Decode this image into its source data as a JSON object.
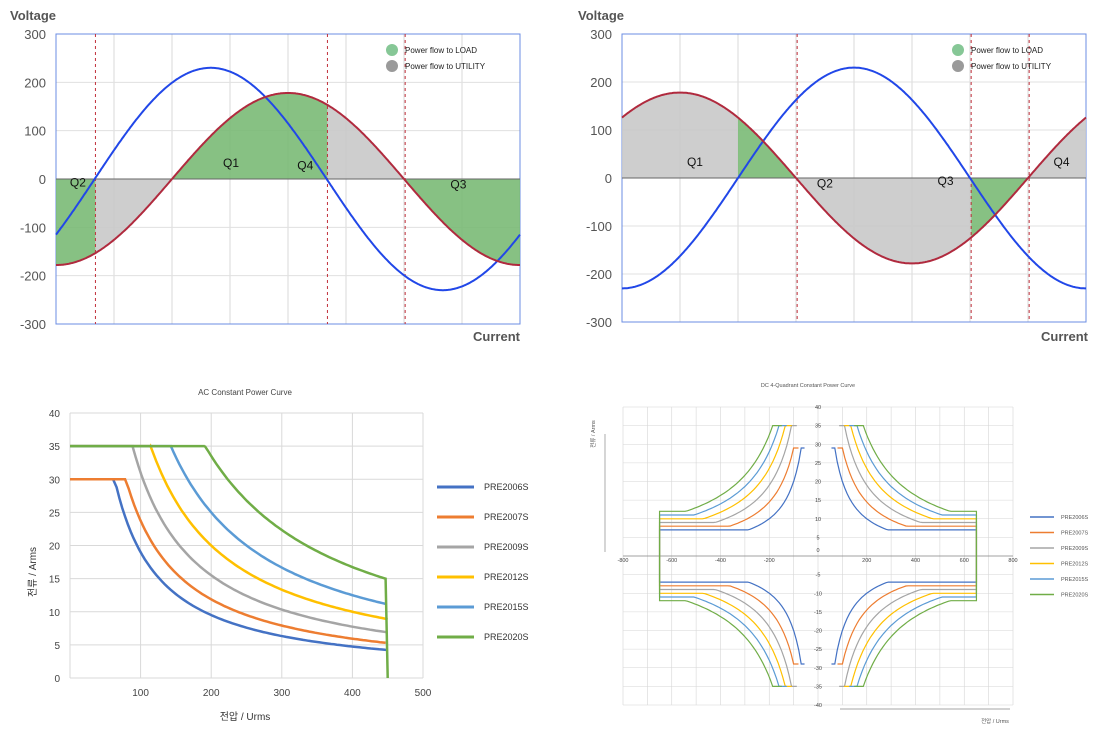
{
  "quadrant_charts": [
    {
      "y_title": "Voltage",
      "x_title": "Current",
      "ylim": [
        -300,
        300
      ],
      "y_ticks": [
        "300",
        "200",
        "100",
        "0",
        "-100",
        "-200",
        "-300"
      ],
      "legend": [
        {
          "label": "Power flow to LOAD",
          "color": "#86c796"
        },
        {
          "label": "Power flow to UTILITY",
          "color": "#9a9a9a"
        }
      ],
      "quadrant_labels": [
        "Q2",
        "Q1",
        "Q4",
        "Q3"
      ],
      "colors": {
        "voltage": "#2147e8",
        "current": "#b02a3e",
        "load_fill": "#7aba76",
        "utility_fill": "#c9c9c9",
        "divider": "#c0303a"
      }
    },
    {
      "y_title": "Voltage",
      "x_title": "Current",
      "ylim": [
        -300,
        300
      ],
      "y_ticks": [
        "300",
        "200",
        "100",
        "0",
        "-100",
        "-200",
        "-300"
      ],
      "legend": [
        {
          "label": "Power flow to LOAD",
          "color": "#86c796"
        },
        {
          "label": "Power flow to UTILITY",
          "color": "#9a9a9a"
        }
      ],
      "quadrant_labels": [
        "Q1",
        "Q2",
        "Q3",
        "Q4"
      ],
      "colors": {
        "voltage": "#2147e8",
        "current": "#b02a3e",
        "load_fill": "#7aba76",
        "utility_fill": "#c9c9c9",
        "divider": "#c0303a"
      }
    }
  ],
  "ac_chart": {
    "title": "AC Constant Power Curve",
    "xlabel": "전압 / Urms",
    "ylabel": "전류 / Arms",
    "x_ticks": [
      "100",
      "200",
      "300",
      "400",
      "500"
    ],
    "y_ticks": [
      "0",
      "5",
      "10",
      "15",
      "20",
      "25",
      "30",
      "35",
      "40"
    ],
    "legend": [
      "PRE2006S",
      "PRE2007S",
      "PRE2009S",
      "PRE2012S",
      "PRE2015S",
      "PRE2020S"
    ]
  },
  "dc_chart": {
    "title": "DC 4-Quadrant Constant Power Curve",
    "xlabel": "전압 / Urms",
    "ylabel": "전류 / Arms",
    "x_ticks": [
      "-800",
      "-600",
      "-400",
      "-200",
      "0",
      "200",
      "400",
      "600",
      "800"
    ],
    "y_ticks": [
      "40",
      "35",
      "30",
      "25",
      "20",
      "15",
      "10",
      "5",
      "0",
      "-5",
      "-10",
      "-15",
      "-20",
      "-25",
      "-30",
      "-35",
      "-40"
    ],
    "legend": [
      "PRE2006S",
      "PRE2007S",
      "PRE2009S",
      "PRE2012S",
      "PRE2015S",
      "PRE2020S"
    ]
  },
  "chart_data": [
    {
      "type": "line",
      "title": "",
      "xlabel": "Current",
      "ylabel": "Voltage",
      "ylim": [
        -300,
        300
      ],
      "series": [
        {
          "name": "",
          "description_values": "voltage sine",
          "amplitude": 230,
          "phase_deg": -30
        },
        {
          "name": "",
          "description_values": "current sine",
          "amplitude": 178,
          "phase_deg": -90
        }
      ],
      "legend": [
        "Power flow to LOAD",
        "Power flow to UTILITY"
      ]
    },
    {
      "type": "line",
      "title": "",
      "xlabel": "Current",
      "ylabel": "Voltage",
      "ylim": [
        -300,
        300
      ],
      "series": [
        {
          "name": "",
          "amplitude": 230,
          "phase_deg": -90
        },
        {
          "name": "",
          "amplitude": 178,
          "phase_deg": 45
        }
      ],
      "legend": [
        "Power flow to LOAD",
        "Power flow to UTILITY"
      ]
    },
    {
      "type": "line",
      "title": "AC Constant Power Curve",
      "xlabel": "전압 / Urms",
      "ylabel": "전류 / Arms",
      "xlim": [
        0,
        500
      ],
      "ylim": [
        0,
        40
      ],
      "series": [
        {
          "name": "PRE2006S",
          "power": 2000,
          "imax": 30,
          "vmin": 66,
          "vmax": 450
        },
        {
          "name": "PRE2007S",
          "power": 2500,
          "imax": 30,
          "vmin": 83,
          "vmax": 450
        },
        {
          "name": "PRE2009S",
          "power": 3100,
          "imax": 35,
          "vmin": 89,
          "vmax": 450
        },
        {
          "name": "PRE2012S",
          "power": 4000,
          "imax": 35,
          "vmin": 114,
          "vmax": 450
        },
        {
          "name": "PRE2015S",
          "power": 5000,
          "imax": 35,
          "vmin": 143,
          "vmax": 450
        },
        {
          "name": "PRE2020S",
          "power": 6700,
          "imax": 35,
          "vmin": 191,
          "vmax": 450
        }
      ]
    },
    {
      "type": "line",
      "title": "DC 4-Quadrant Constant Power Curve",
      "xlabel": "전압 / Urms",
      "ylabel": "전류 / Arms",
      "xlim": [
        -800,
        800
      ],
      "ylim": [
        -40,
        40
      ],
      "series": [
        {
          "name": "PRE2006S",
          "imax": 29,
          "vmax": 650,
          "offset": 0
        },
        {
          "name": "PRE2007S",
          "imax": 29,
          "vmax": 650,
          "offset": 1
        },
        {
          "name": "PRE2009S",
          "imax": 35,
          "vmax": 650,
          "offset": 2
        },
        {
          "name": "PRE2012S",
          "imax": 35,
          "vmax": 650,
          "offset": 3
        },
        {
          "name": "PRE2015S",
          "imax": 35,
          "vmax": 650,
          "offset": 4
        },
        {
          "name": "PRE2020S",
          "imax": 35,
          "vmax": 650,
          "offset": 5
        }
      ]
    }
  ],
  "series_colors": [
    "#4472c4",
    "#ed7d31",
    "#a5a5a5",
    "#ffc000",
    "#5b9bd5",
    "#70ad47"
  ]
}
